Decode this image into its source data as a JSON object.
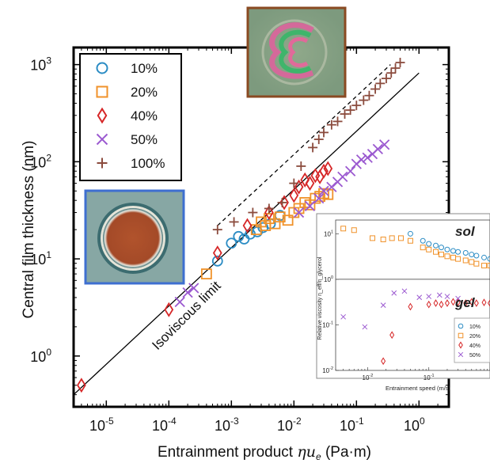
{
  "chart_data": [
    {
      "type": "scatter",
      "xlabel_main": "Entrainment product ",
      "xlabel_sym": "ηu",
      "xlabel_sub": "e",
      "xlabel_unit": " (Pa·m)",
      "ylabel": "Central film thickness (nm)",
      "x_scale": "log",
      "y_scale": "log",
      "xlim": [
        3e-06,
        3
      ],
      "ylim": [
        0.3,
        1500
      ],
      "x_ticks": [
        {
          "base": "10",
          "exp": "-5",
          "value": 1e-05
        },
        {
          "base": "10",
          "exp": "-4",
          "value": 0.0001
        },
        {
          "base": "10",
          "exp": "-3",
          "value": 0.001
        },
        {
          "base": "10",
          "exp": "-2",
          "value": 0.01
        },
        {
          "base": "10",
          "exp": "-1",
          "value": 0.1
        },
        {
          "base": "10",
          "exp": "0",
          "value": 1
        }
      ],
      "y_ticks": [
        {
          "base": "10",
          "exp": "0",
          "value": 1
        },
        {
          "base": "10",
          "exp": "1",
          "value": 10
        },
        {
          "base": "10",
          "exp": "2",
          "value": 100
        },
        {
          "base": "10",
          "exp": "3",
          "value": 1000
        }
      ],
      "annotation": "Isoviscous limit",
      "legend_position": "top-left",
      "reference_line": {
        "x": [
          3e-06,
          1
        ],
        "y": [
          0.4,
          820
        ]
      },
      "dashed_line": {
        "x": [
          0.0006,
          0.35
        ],
        "y": [
          22,
          1000
        ]
      },
      "series": [
        {
          "name": "10%",
          "marker": "circle",
          "color": "#2b8cc4",
          "x": [
            0.0006,
            0.001,
            0.0013,
            0.0016,
            0.002,
            0.0026,
            0.0032,
            0.0042,
            0.006
          ],
          "y": [
            9.5,
            14.5,
            17,
            16,
            18,
            19,
            21,
            23,
            28
          ]
        },
        {
          "name": "20%",
          "marker": "square",
          "color": "#f0922a",
          "x": [
            0.0004,
            0.0025,
            0.003,
            0.0035,
            0.004,
            0.005,
            0.006,
            0.008,
            0.01,
            0.012,
            0.015,
            0.018,
            0.022,
            0.026,
            0.03,
            0.035
          ],
          "y": [
            7,
            20,
            24,
            22,
            26,
            23,
            27,
            25,
            30,
            33,
            38,
            36,
            42,
            44,
            47,
            46
          ]
        },
        {
          "name": "40%",
          "marker": "diamond",
          "color": "#d62728",
          "x": [
            4e-06,
            0.0001,
            0.0006,
            0.0018,
            0.004,
            0.007,
            0.01,
            0.012,
            0.015,
            0.018,
            0.022,
            0.026,
            0.03,
            0.035
          ],
          "y": [
            0.5,
            3,
            11.5,
            22,
            30,
            38,
            45,
            55,
            65,
            60,
            72,
            70,
            80,
            85
          ]
        },
        {
          "name": "50%",
          "marker": "cross",
          "color": "#9b59d0",
          "x": [
            0.00015,
            0.0002,
            0.00025,
            0.012,
            0.018,
            0.025,
            0.03,
            0.04,
            0.05,
            0.06,
            0.08,
            0.1,
            0.12,
            0.15,
            0.18,
            0.22,
            0.28
          ],
          "y": [
            3.6,
            4.5,
            5,
            30,
            35,
            42,
            50,
            55,
            62,
            70,
            80,
            95,
            105,
            110,
            120,
            135,
            150
          ]
        },
        {
          "name": "100%",
          "marker": "plus",
          "color": "#8b4b3d",
          "x": [
            0.0006,
            0.0011,
            0.0022,
            0.004,
            0.0065,
            0.01,
            0.013,
            0.02,
            0.025,
            0.03,
            0.04,
            0.05,
            0.065,
            0.08,
            0.1,
            0.13,
            0.16,
            0.2,
            0.24,
            0.3,
            0.36,
            0.42,
            0.5
          ],
          "y": [
            20,
            24,
            30,
            33,
            38,
            60,
            90,
            140,
            170,
            200,
            240,
            260,
            310,
            340,
            380,
            430,
            480,
            560,
            640,
            720,
            820,
            920,
            1050
          ]
        }
      ]
    },
    {
      "type": "scatter",
      "inset": true,
      "xlabel": "Entrainment speed (m/s)",
      "ylabel": "Relative viscosity η_eff/η_glycerol",
      "x_scale": "log",
      "y_scale": "log",
      "xlim": [
        0.003,
        1
      ],
      "ylim": [
        0.01,
        20
      ],
      "x_ticks": [
        {
          "base": "10",
          "exp": "-2",
          "value": 0.01
        },
        {
          "base": "10",
          "exp": "-1",
          "value": 0.1
        }
      ],
      "y_ticks": [
        {
          "base": "10",
          "exp": "1",
          "value": 10
        },
        {
          "base": "10",
          "exp": "0",
          "value": 1
        },
        {
          "base": "10",
          "exp": "-1",
          "value": 0.1
        },
        {
          "base": "10",
          "exp": "-2",
          "value": 0.01
        }
      ],
      "annotations": [
        "sol",
        "gel"
      ],
      "legend_position": "bottom-right",
      "reference_line_y": 1,
      "series": [
        {
          "name": "10%",
          "marker": "circle",
          "color": "#2b8cc4",
          "x": [
            0.05,
            0.08,
            0.1,
            0.13,
            0.16,
            0.2,
            0.25,
            0.3,
            0.4,
            0.5,
            0.6,
            0.8,
            1.0
          ],
          "y": [
            10,
            7,
            6,
            5.5,
            5,
            4.5,
            4.2,
            4,
            3.8,
            3.5,
            3.3,
            3,
            2.8
          ]
        },
        {
          "name": "20%",
          "marker": "square",
          "color": "#f0922a",
          "x": [
            0.004,
            0.006,
            0.012,
            0.018,
            0.025,
            0.035,
            0.05,
            0.08,
            0.1,
            0.13,
            0.16,
            0.2,
            0.25,
            0.3,
            0.4,
            0.5,
            0.6,
            0.8,
            1.0
          ],
          "y": [
            13,
            12,
            8,
            7.5,
            8,
            8,
            7,
            5,
            4.5,
            4,
            3.5,
            3.2,
            3,
            2.8,
            2.6,
            2.4,
            2.2,
            2,
            2
          ]
        },
        {
          "name": "40%",
          "marker": "diamond",
          "color": "#d62728",
          "x": [
            0.018,
            0.025,
            0.05,
            0.1,
            0.13,
            0.16,
            0.2,
            0.25,
            0.3,
            0.4,
            0.5,
            0.6,
            0.8,
            1.0
          ],
          "y": [
            0.016,
            0.06,
            0.25,
            0.28,
            0.3,
            0.28,
            0.3,
            0.32,
            0.31,
            0.3,
            0.32,
            0.3,
            0.31,
            0.3
          ]
        },
        {
          "name": "50%",
          "marker": "cross",
          "color": "#9b59d0",
          "x": [
            0.004,
            0.009,
            0.018,
            0.027,
            0.04,
            0.07,
            0.1,
            0.15,
            0.2,
            0.3
          ],
          "y": [
            0.15,
            0.09,
            0.27,
            0.5,
            0.55,
            0.4,
            0.42,
            0.45,
            0.42,
            0.38
          ]
        }
      ]
    }
  ]
}
